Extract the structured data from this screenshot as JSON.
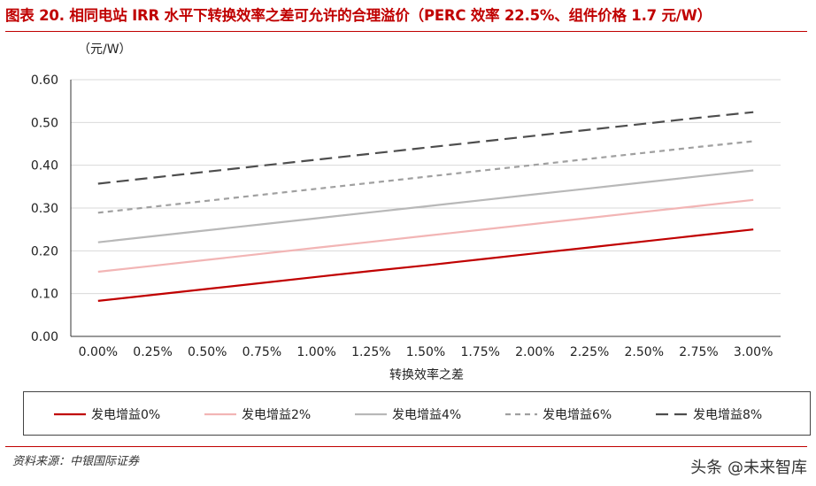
{
  "title": "图表 20. 相同电站 IRR 水平下转换效率之差可允许的合理溢价（PERC 效率 22.5%、组件价格 1.7 元/W）",
  "source": "资料来源：中银国际证券",
  "watermark": "头条 @未来智库",
  "chart_data": {
    "type": "line",
    "title": "",
    "unit_label": "（元/W）",
    "xlabel": "转换效率之差",
    "ylabel": "",
    "categories": [
      "0.00%",
      "0.25%",
      "0.50%",
      "0.75%",
      "1.00%",
      "1.25%",
      "1.50%",
      "1.75%",
      "2.00%",
      "2.25%",
      "2.50%",
      "2.75%",
      "3.00%"
    ],
    "ylim": [
      0,
      0.6
    ],
    "yticks": [
      "0.00",
      "0.10",
      "0.20",
      "0.30",
      "0.40",
      "0.50",
      "0.60"
    ],
    "grid": true,
    "legend_position": "bottom",
    "series": [
      {
        "name": "发电增益0%",
        "color": "#c00000",
        "dash": "solid",
        "values": [
          0.083,
          0.097,
          0.111,
          0.125,
          0.139,
          0.153,
          0.166,
          0.18,
          0.194,
          0.208,
          0.222,
          0.236,
          0.25
        ]
      },
      {
        "name": "发电增益2%",
        "color": "#f2b5b5",
        "dash": "solid",
        "values": [
          0.151,
          0.165,
          0.179,
          0.193,
          0.207,
          0.221,
          0.235,
          0.249,
          0.263,
          0.277,
          0.291,
          0.305,
          0.319
        ]
      },
      {
        "name": "发电增益4%",
        "color": "#b8b8b8",
        "dash": "solid",
        "values": [
          0.22,
          0.234,
          0.248,
          0.262,
          0.276,
          0.29,
          0.304,
          0.318,
          0.332,
          0.346,
          0.36,
          0.374,
          0.388
        ]
      },
      {
        "name": "发电增益6%",
        "color": "#a0a0a0",
        "dash": "dashed",
        "values": [
          0.289,
          0.303,
          0.317,
          0.331,
          0.345,
          0.359,
          0.373,
          0.387,
          0.401,
          0.415,
          0.429,
          0.443,
          0.456
        ]
      },
      {
        "name": "发电增益8%",
        "color": "#4d4d4d",
        "dash": "longdash",
        "values": [
          0.357,
          0.371,
          0.385,
          0.399,
          0.413,
          0.427,
          0.441,
          0.455,
          0.469,
          0.483,
          0.497,
          0.511,
          0.524
        ]
      }
    ]
  }
}
